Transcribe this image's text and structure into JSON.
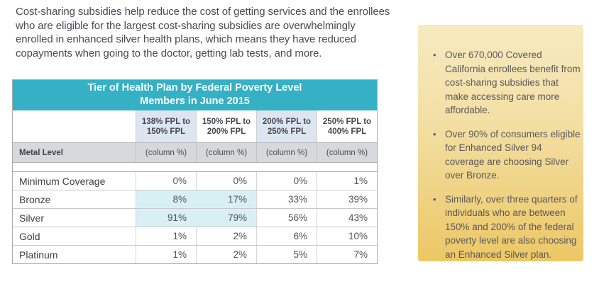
{
  "intro_paragraph": "Cost-sharing subsidies help reduce the cost of getting services and the enrollees\nwho are eligible for the largest cost-sharing subsidies are overwhelmingly\nenrolled in enhanced silver health plans, which means they have reduced\ncopayments when going to the doctor, getting lab tests, and more.",
  "table": {
    "title_line1": "Tier of Health Plan by Federal Poverty Level",
    "title_line2": "Members in June 2015",
    "corner_label": "Metal Level",
    "column_headers": [
      "138% FPL to\n150% FPL",
      "150% FPL to\n200% FPL",
      "200% FPL to\n250% FPL",
      "250% FPL to\n400% FPL"
    ],
    "subheaders": [
      "(column %)",
      "(column %)",
      "(column %)",
      "(column %)"
    ],
    "rows": [
      {
        "label": "Minimum Coverage",
        "values": [
          "0%",
          "0%",
          "0%",
          "1%"
        ]
      },
      {
        "label": "Bronze",
        "values": [
          "8%",
          "17%",
          "33%",
          "39%"
        ]
      },
      {
        "label": "Silver",
        "values": [
          "91%",
          "79%",
          "56%",
          "43%"
        ]
      },
      {
        "label": "Gold",
        "values": [
          "1%",
          "2%",
          "6%",
          "10%"
        ]
      },
      {
        "label": "Platinum",
        "values": [
          "1%",
          "2%",
          "5%",
          "7%"
        ]
      }
    ],
    "highlight_note": "Bronze and Silver cells in the 138%–150% and 150%–200% FPL columns are highlighted cyan"
  },
  "sidebar": {
    "bullet_glyph": "•",
    "bullets": [
      "Over 670,000 Covered\nCalifornia enrollees benefit from\ncost-sharing subsidies that\nmake accessing care more\naffordable.",
      "Over 90% of consumers eligible\nfor Enhanced Silver 94\ncoverage are choosing Silver\nover Bronze.",
      "Similarly, over three quarters of\nindividuals who are between\n150% and 200% of the federal\npoverty level are also choosing\nan Enhanced Silver plan."
    ]
  },
  "chart_data": {
    "type": "table",
    "title": "Tier of Health Plan by Federal Poverty Level Members in June 2015",
    "categories": [
      "138% FPL to 150% FPL",
      "150% FPL to 200% FPL",
      "200% FPL to 250% FPL",
      "250% FPL to 400% FPL"
    ],
    "unit": "column %",
    "series": [
      {
        "name": "Minimum Coverage",
        "values": [
          0,
          0,
          0,
          1
        ]
      },
      {
        "name": "Bronze",
        "values": [
          8,
          17,
          33,
          39
        ]
      },
      {
        "name": "Silver",
        "values": [
          91,
          79,
          56,
          43
        ]
      },
      {
        "name": "Gold",
        "values": [
          1,
          2,
          6,
          10
        ]
      },
      {
        "name": "Platinum",
        "values": [
          1,
          2,
          5,
          7
        ]
      }
    ]
  },
  "colors": {
    "table_header_teal": "#35b0c4",
    "column_header_blue": "#dce5f0",
    "metal_row_gray": "#d7d8dc",
    "highlight_cyan": "#d8f0f4",
    "sidebar_gradient_top": "#f7eac0",
    "sidebar_gradient_bottom": "#ecc765",
    "body_text": "#4a4b51"
  }
}
